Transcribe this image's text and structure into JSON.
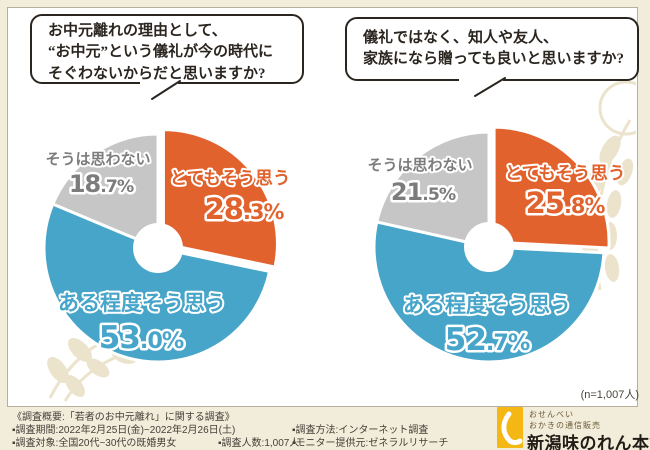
{
  "questions": [
    {
      "lines": [
        "お中元離れの理由として、",
        "“お中元”という儀礼が今の時代に",
        "そぐわないからだと思いますか?"
      ]
    },
    {
      "lines": [
        "儀礼ではなく、知人や友人、",
        "家族になら贈っても良いと思いますか?"
      ]
    }
  ],
  "chart_data": [
    {
      "type": "pie",
      "title": "お中元離れの理由として、“お中元”という儀礼が今の時代にそぐわないからだと思いますか?",
      "labels": [
        "とてもそう思う",
        "ある程度そう思う",
        "そうは思わない"
      ],
      "values": [
        28.3,
        53.0,
        18.7
      ],
      "colors": [
        "#e2622e",
        "#47a5c9",
        "#c6c6c6"
      ],
      "unit": "%",
      "donut": true,
      "start_angle": "top",
      "direction": "clockwise",
      "exploded_index": 0,
      "legend_position": "on-slices"
    },
    {
      "type": "pie",
      "title": "儀礼ではなく、知人や友人、家族になら贈っても良いと思いますか?",
      "labels": [
        "とてもそう思う",
        "ある程度そう思う",
        "そうは思わない"
      ],
      "values": [
        25.8,
        52.7,
        21.5
      ],
      "colors": [
        "#e2622e",
        "#47a5c9",
        "#c6c6c6"
      ],
      "unit": "%",
      "donut": true,
      "start_angle": "top",
      "direction": "clockwise",
      "exploded_index": 0,
      "legend_position": "on-slices"
    }
  ],
  "sample_note": "(n=1,007人)",
  "footer": {
    "overview": "《調査概要:「若者のお中元離れ」に関する調査》",
    "period": "▪調査期間:2022年2月25日(金)~2022年2月26日(土)",
    "target": "▪調査対象:全国20代~30代の既婚男女",
    "count": "▪調査人数:1,007人",
    "method": "▪調査方法:インターネット調査",
    "monitor": "▪モニター提供元:ゼネラルリサーチ"
  },
  "logo": {
    "tagline1": "おせんべい",
    "tagline2": "おかきの通信販売",
    "name": "新潟味のれん本舗",
    "brand_color": "#f4b713"
  },
  "colors": {
    "background": "#f2ecda",
    "panel_border": "#b7ae9c",
    "agree_strong": "#e2622e",
    "agree_some": "#47a5c9",
    "disagree": "#c6c6c6"
  }
}
